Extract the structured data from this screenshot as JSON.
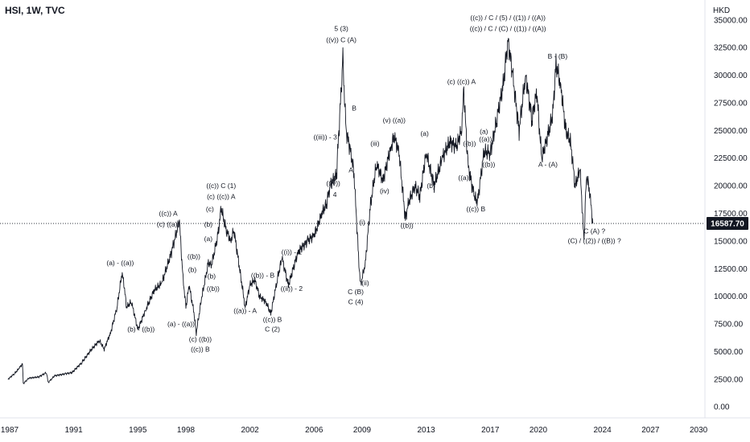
{
  "header": {
    "title": "HSI, 1W, TVC"
  },
  "chart_data": {
    "type": "line",
    "currency": "HKD",
    "current_price": 16587.7,
    "current_price_label": "16587.70",
    "xlim": [
      1987,
      2031
    ],
    "ylim": [
      -1000,
      36800
    ],
    "x_ticks": [
      "1987",
      "1991",
      "1995",
      "1998",
      "2002",
      "2006",
      "2009",
      "2013",
      "2017",
      "2020",
      "2024",
      "2027",
      "2030"
    ],
    "x_tick_values": [
      1987,
      1991,
      1995,
      1998,
      2002,
      2006,
      2009,
      2013,
      2017,
      2020,
      2024,
      2027,
      2030
    ],
    "y_ticks": [
      "35000.00",
      "32500.00",
      "30000.00",
      "27500.00",
      "25000.00",
      "22500.00",
      "20000.00",
      "17500.00",
      "15000.00",
      "12500.00",
      "10000.00",
      "7500.00",
      "5000.00",
      "2500.00",
      "0.00"
    ],
    "y_tick_values": [
      35000,
      32500,
      30000,
      27500,
      25000,
      22500,
      20000,
      17500,
      15000,
      12500,
      10000,
      7500,
      5000,
      2500,
      0
    ],
    "series": [
      {
        "color": "#131722",
        "points": [
          [
            1986.9,
            2500
          ],
          [
            1987.3,
            3000
          ],
          [
            1987.6,
            3500
          ],
          [
            1987.8,
            3900
          ],
          [
            1987.85,
            2100
          ],
          [
            1988.2,
            2600
          ],
          [
            1988.8,
            2700
          ],
          [
            1989.3,
            3100
          ],
          [
            1989.4,
            2200
          ],
          [
            1989.8,
            2800
          ],
          [
            1990.5,
            3000
          ],
          [
            1990.9,
            3100
          ],
          [
            1991.5,
            4000
          ],
          [
            1992.0,
            5000
          ],
          [
            1992.6,
            6000
          ],
          [
            1992.9,
            5200
          ],
          [
            1993.3,
            6700
          ],
          [
            1993.7,
            9000
          ],
          [
            1994.0,
            12000
          ],
          [
            1994.1,
            11500
          ],
          [
            1994.3,
            9000
          ],
          [
            1994.6,
            9500
          ],
          [
            1995.0,
            7000
          ],
          [
            1995.5,
            8800
          ],
          [
            1996.0,
            10500
          ],
          [
            1996.5,
            11200
          ],
          [
            1997.0,
            13500
          ],
          [
            1997.6,
            16800
          ],
          [
            1997.8,
            12000
          ],
          [
            1998.0,
            9000
          ],
          [
            1998.2,
            11000
          ],
          [
            1998.5,
            8500
          ],
          [
            1998.65,
            6700
          ],
          [
            1999.0,
            10000
          ],
          [
            1999.4,
            13000
          ],
          [
            1999.6,
            12800
          ],
          [
            2000.0,
            15500
          ],
          [
            2000.2,
            18000
          ],
          [
            2000.5,
            16000
          ],
          [
            2000.8,
            15000
          ],
          [
            2001.0,
            16000
          ],
          [
            2001.3,
            13000
          ],
          [
            2001.7,
            9000
          ],
          [
            2002.0,
            11000
          ],
          [
            2002.3,
            11500
          ],
          [
            2002.6,
            10000
          ],
          [
            2003.0,
            9500
          ],
          [
            2003.3,
            8400
          ],
          [
            2003.7,
            11500
          ],
          [
            2004.0,
            13500
          ],
          [
            2004.4,
            11000
          ],
          [
            2005.0,
            14000
          ],
          [
            2005.6,
            15000
          ],
          [
            2006.0,
            15500
          ],
          [
            2006.5,
            17500
          ],
          [
            2006.8,
            18500
          ],
          [
            2007.0,
            20000
          ],
          [
            2007.4,
            21000
          ],
          [
            2007.8,
            31500
          ],
          [
            2007.9,
            28000
          ],
          [
            2008.0,
            25000
          ],
          [
            2008.3,
            23000
          ],
          [
            2008.5,
            21000
          ],
          [
            2008.8,
            13000
          ],
          [
            2008.9,
            11000
          ],
          [
            2009.2,
            13000
          ],
          [
            2009.5,
            18000
          ],
          [
            2009.9,
            22000
          ],
          [
            2010.3,
            20500
          ],
          [
            2010.8,
            23500
          ],
          [
            2011.0,
            24500
          ],
          [
            2011.3,
            23000
          ],
          [
            2011.7,
            17000
          ],
          [
            2011.9,
            18500
          ],
          [
            2012.3,
            20000
          ],
          [
            2012.6,
            19000
          ],
          [
            2013.0,
            23000
          ],
          [
            2013.5,
            20000
          ],
          [
            2014.0,
            22500
          ],
          [
            2014.5,
            24000
          ],
          [
            2014.9,
            23500
          ],
          [
            2015.2,
            25000
          ],
          [
            2015.35,
            28500
          ],
          [
            2015.6,
            22000
          ],
          [
            2016.0,
            19000
          ],
          [
            2016.2,
            18500
          ],
          [
            2016.6,
            23000
          ],
          [
            2017.0,
            23000
          ],
          [
            2017.4,
            26000
          ],
          [
            2017.8,
            29000
          ],
          [
            2018.1,
            33200
          ],
          [
            2018.4,
            30000
          ],
          [
            2018.8,
            25000
          ],
          [
            2019.2,
            30000
          ],
          [
            2019.6,
            26000
          ],
          [
            2019.9,
            28500
          ],
          [
            2020.2,
            22500
          ],
          [
            2020.6,
            24500
          ],
          [
            2020.9,
            26500
          ],
          [
            2021.1,
            31000
          ],
          [
            2021.4,
            29000
          ],
          [
            2021.7,
            25000
          ],
          [
            2022.0,
            24000
          ],
          [
            2022.3,
            20000
          ],
          [
            2022.6,
            21500
          ],
          [
            2022.85,
            15000
          ],
          [
            2023.0,
            21000
          ],
          [
            2023.2,
            19500
          ],
          [
            2023.4,
            16587.7
          ]
        ]
      }
    ],
    "annotations": [
      {
        "text": "(a) - ((a))",
        "x": 1993.9,
        "y": 12800
      },
      {
        "text": "(b) - ((b))",
        "x": 1995.2,
        "y": 6800
      },
      {
        "text": "((c)) A",
        "x": 1996.9,
        "y": 17300
      },
      {
        "text": "(c) ((a))",
        "x": 1996.9,
        "y": 16300
      },
      {
        "text": "((b))",
        "x": 1998.5,
        "y": 13400
      },
      {
        "text": "(b)",
        "x": 1998.4,
        "y": 12200
      },
      {
        "text": "(a) - ((a))",
        "x": 1997.7,
        "y": 7300
      },
      {
        "text": "(c) ((b))",
        "x": 1998.9,
        "y": 5900
      },
      {
        "text": "((c)) B",
        "x": 1998.9,
        "y": 5000
      },
      {
        "text": "((c)) C (1)",
        "x": 2000.2,
        "y": 19800
      },
      {
        "text": "(c) ((c)) A",
        "x": 2000.2,
        "y": 18800
      },
      {
        "text": "(c)",
        "x": 1999.5,
        "y": 17700
      },
      {
        "text": "(b)",
        "x": 1999.4,
        "y": 16300
      },
      {
        "text": "(a)",
        "x": 1999.4,
        "y": 15000
      },
      {
        "text": "(b)",
        "x": 1999.6,
        "y": 11600
      },
      {
        "text": "((b))",
        "x": 1999.7,
        "y": 10500
      },
      {
        "text": "((a)) - A",
        "x": 2001.7,
        "y": 8500
      },
      {
        "text": "((b)) - B",
        "x": 2002.8,
        "y": 11700
      },
      {
        "text": "((i)) - 1",
        "x": 2004.6,
        "y": 13800
      },
      {
        "text": "((ii)) - 2",
        "x": 2004.6,
        "y": 10500
      },
      {
        "text": "((c)) B",
        "x": 2003.4,
        "y": 7700
      },
      {
        "text": "C (2)",
        "x": 2003.4,
        "y": 6800
      },
      {
        "text": "((iii)) - 3",
        "x": 2006.7,
        "y": 24200
      },
      {
        "text": "((iv))",
        "x": 2007.2,
        "y": 20000
      },
      {
        "text": "4",
        "x": 2007.3,
        "y": 19000
      },
      {
        "text": "5 (3)",
        "x": 2007.7,
        "y": 34000
      },
      {
        "text": "((v)) C (A)",
        "x": 2007.7,
        "y": 33000
      },
      {
        "text": "B",
        "x": 2008.5,
        "y": 26800
      },
      {
        "text": "A",
        "x": 2008.3,
        "y": 21200
      },
      {
        "text": "(i)",
        "x": 2009.0,
        "y": 16500
      },
      {
        "text": "C (B)",
        "x": 2008.6,
        "y": 10200
      },
      {
        "text": "C (4)",
        "x": 2008.6,
        "y": 9300
      },
      {
        "text": "(ii)",
        "x": 2009.2,
        "y": 11000
      },
      {
        "text": "(iii)",
        "x": 2009.8,
        "y": 23600
      },
      {
        "text": "(iv)",
        "x": 2010.4,
        "y": 19300
      },
      {
        "text": "(v) ((a))",
        "x": 2011.0,
        "y": 25700
      },
      {
        "text": "((b))",
        "x": 2011.8,
        "y": 16200
      },
      {
        "text": "(a)",
        "x": 2012.9,
        "y": 24500
      },
      {
        "text": "(b)",
        "x": 2013.3,
        "y": 19800
      },
      {
        "text": "(c) ((c)) A",
        "x": 2015.2,
        "y": 29200
      },
      {
        "text": "((a))",
        "x": 2015.4,
        "y": 20500
      },
      {
        "text": "((b))",
        "x": 2015.7,
        "y": 23600
      },
      {
        "text": "((c)) B",
        "x": 2016.1,
        "y": 17700
      },
      {
        "text": "(a)",
        "x": 2016.6,
        "y": 24700
      },
      {
        "text": "((a))",
        "x": 2016.7,
        "y": 24000
      },
      {
        "text": "((b))",
        "x": 2016.9,
        "y": 21700
      },
      {
        "text": "((c)) / C / (5) / ((1)) / ((A))",
        "x": 2018.1,
        "y": 35000
      },
      {
        "text": "((c)) / C / (C) / ((1)) / ((A))",
        "x": 2018.1,
        "y": 34000
      },
      {
        "text": "A - (A)",
        "x": 2020.6,
        "y": 21700
      },
      {
        "text": "B - (B)",
        "x": 2021.2,
        "y": 31500
      },
      {
        "text": "C (A) ?",
        "x": 2023.5,
        "y": 15700
      },
      {
        "text": "(C) / ((2)) / ((B)) ?",
        "x": 2023.5,
        "y": 14800
      }
    ]
  }
}
